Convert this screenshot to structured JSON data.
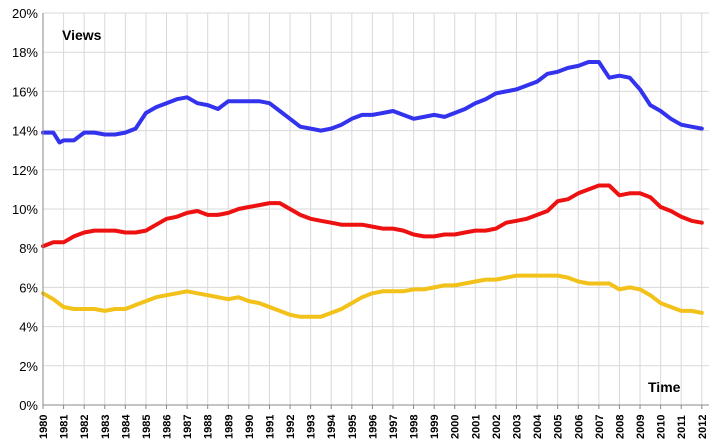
{
  "chart_data": {
    "type": "line",
    "ylabel": "Views",
    "xlabel": "Time",
    "ylim": [
      0,
      20
    ],
    "yticks": [
      "0%",
      "2%",
      "4%",
      "6%",
      "8%",
      "10%",
      "12%",
      "14%",
      "16%",
      "18%",
      "20%"
    ],
    "x_categories": [
      "1980",
      "1981",
      "1982",
      "1983",
      "1984",
      "1985",
      "1986",
      "1987",
      "1988",
      "1989",
      "1990",
      "1991",
      "1992",
      "1993",
      "1994",
      "1995",
      "1996",
      "1997",
      "1998",
      "1999",
      "2000",
      "2001",
      "2002",
      "2003",
      "2004",
      "2005",
      "2006",
      "2007",
      "2008",
      "2009",
      "2010",
      "2011",
      "2012"
    ],
    "grid": true,
    "series": [
      {
        "color": "#3333ee",
        "x": [
          1980,
          1980.5,
          1980.8,
          1981,
          1981.5,
          1982,
          1982.5,
          1983,
          1983.5,
          1984,
          1984.5,
          1985,
          1985.5,
          1986,
          1986.5,
          1987,
          1987.5,
          1988,
          1988.5,
          1989,
          1989.5,
          1990,
          1990.5,
          1991,
          1991.5,
          1992,
          1992.5,
          1993,
          1993.5,
          1994,
          1994.5,
          1995,
          1995.5,
          1996,
          1996.5,
          1997,
          1997.5,
          1998,
          1998.5,
          1999,
          1999.5,
          2000,
          2000.5,
          2001,
          2001.5,
          2002,
          2002.5,
          2003,
          2003.5,
          2004,
          2004.5,
          2005,
          2005.5,
          2006,
          2006.5,
          2007,
          2007.5,
          2008,
          2008.5,
          2009,
          2009.5,
          2010,
          2010.5,
          2011,
          2011.5,
          2012
        ],
        "values": [
          13.9,
          13.9,
          13.4,
          13.5,
          13.5,
          13.9,
          13.9,
          13.8,
          13.8,
          13.9,
          14.1,
          14.9,
          15.2,
          15.4,
          15.6,
          15.7,
          15.4,
          15.3,
          15.1,
          15.5,
          15.5,
          15.5,
          15.5,
          15.4,
          15.0,
          14.6,
          14.2,
          14.1,
          14.0,
          14.1,
          14.3,
          14.6,
          14.8,
          14.8,
          14.9,
          15.0,
          14.8,
          14.6,
          14.7,
          14.8,
          14.7,
          14.9,
          15.1,
          15.4,
          15.6,
          15.9,
          16.0,
          16.1,
          16.3,
          16.5,
          16.9,
          17.0,
          17.2,
          17.3,
          17.5,
          17.5,
          16.7,
          16.8,
          16.7,
          16.1,
          15.3,
          15.0,
          14.6,
          14.3,
          14.2,
          14.1
        ]
      },
      {
        "color": "#ee1111",
        "x": [
          1980,
          1980.5,
          1981,
          1981.5,
          1982,
          1982.5,
          1983,
          1983.5,
          1984,
          1984.5,
          1985,
          1985.5,
          1986,
          1986.5,
          1987,
          1987.5,
          1988,
          1988.5,
          1989,
          1989.5,
          1990,
          1990.5,
          1991,
          1991.5,
          1992,
          1992.5,
          1993,
          1993.5,
          1994,
          1994.5,
          1995,
          1995.5,
          1996,
          1996.5,
          1997,
          1997.5,
          1998,
          1998.5,
          1999,
          1999.5,
          2000,
          2000.5,
          2001,
          2001.5,
          2002,
          2002.5,
          2003,
          2003.5,
          2004,
          2004.5,
          2005,
          2005.5,
          2006,
          2006.5,
          2007,
          2007.5,
          2008,
          2008.5,
          2009,
          2009.5,
          2010,
          2010.5,
          2011,
          2011.5,
          2012
        ],
        "values": [
          8.1,
          8.3,
          8.3,
          8.6,
          8.8,
          8.9,
          8.9,
          8.9,
          8.8,
          8.8,
          8.9,
          9.2,
          9.5,
          9.6,
          9.8,
          9.9,
          9.7,
          9.7,
          9.8,
          10.0,
          10.1,
          10.2,
          10.3,
          10.3,
          10.0,
          9.7,
          9.5,
          9.4,
          9.3,
          9.2,
          9.2,
          9.2,
          9.1,
          9.0,
          9.0,
          8.9,
          8.7,
          8.6,
          8.6,
          8.7,
          8.7,
          8.8,
          8.9,
          8.9,
          9.0,
          9.3,
          9.4,
          9.5,
          9.7,
          9.9,
          10.4,
          10.5,
          10.8,
          11.0,
          11.2,
          11.2,
          10.7,
          10.8,
          10.8,
          10.6,
          10.1,
          9.9,
          9.6,
          9.4,
          9.3
        ]
      },
      {
        "color": "#f2c11a",
        "x": [
          1980,
          1980.5,
          1981,
          1981.5,
          1982,
          1982.5,
          1983,
          1983.5,
          1984,
          1984.5,
          1985,
          1985.5,
          1986,
          1986.5,
          1987,
          1987.5,
          1988,
          1988.5,
          1989,
          1989.5,
          1990,
          1990.5,
          1991,
          1991.5,
          1992,
          1992.5,
          1993,
          1993.5,
          1994,
          1994.5,
          1995,
          1995.5,
          1996,
          1996.5,
          1997,
          1997.5,
          1998,
          1998.5,
          1999,
          1999.5,
          2000,
          2000.5,
          2001,
          2001.5,
          2002,
          2002.5,
          2003,
          2003.5,
          2004,
          2004.5,
          2005,
          2005.5,
          2006,
          2006.5,
          2007,
          2007.5,
          2008,
          2008.5,
          2009,
          2009.5,
          2010,
          2010.5,
          2011,
          2011.5,
          2012
        ],
        "values": [
          5.7,
          5.4,
          5.0,
          4.9,
          4.9,
          4.9,
          4.8,
          4.9,
          4.9,
          5.1,
          5.3,
          5.5,
          5.6,
          5.7,
          5.8,
          5.7,
          5.6,
          5.5,
          5.4,
          5.5,
          5.3,
          5.2,
          5.0,
          4.8,
          4.6,
          4.5,
          4.5,
          4.5,
          4.7,
          4.9,
          5.2,
          5.5,
          5.7,
          5.8,
          5.8,
          5.8,
          5.9,
          5.9,
          6.0,
          6.1,
          6.1,
          6.2,
          6.3,
          6.4,
          6.4,
          6.5,
          6.6,
          6.6,
          6.6,
          6.6,
          6.6,
          6.5,
          6.3,
          6.2,
          6.2,
          6.2,
          5.9,
          6.0,
          5.9,
          5.6,
          5.2,
          5.0,
          4.8,
          4.8,
          4.7
        ]
      }
    ]
  }
}
